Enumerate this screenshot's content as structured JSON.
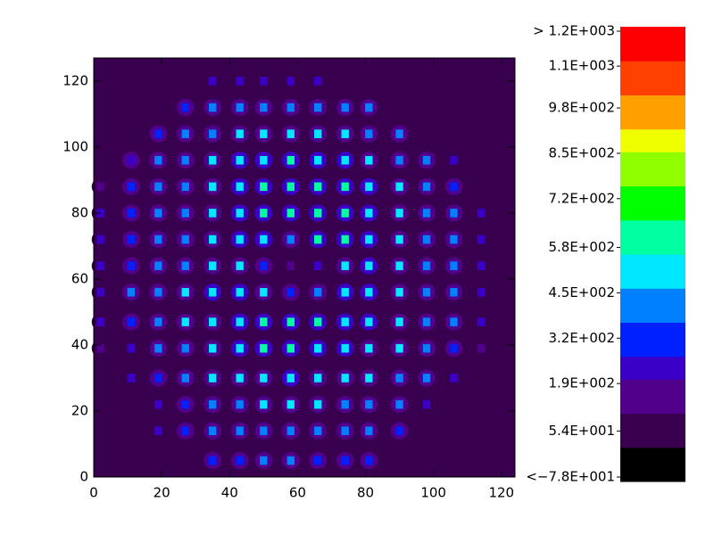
{
  "chart_data": {
    "type": "heatmap",
    "xlim": [
      0,
      124
    ],
    "ylim": [
      0,
      127
    ],
    "xticks": [
      0,
      20,
      40,
      60,
      80,
      100,
      120
    ],
    "yticks": [
      0,
      20,
      40,
      60,
      80,
      100,
      120
    ],
    "x": [
      2,
      11,
      19,
      27,
      35,
      43,
      50,
      58,
      66,
      74,
      81,
      90,
      98,
      106,
      114
    ],
    "y": [
      5,
      14,
      22,
      30,
      39,
      47,
      56,
      64,
      72,
      80,
      88,
      96,
      104,
      112,
      120
    ],
    "background": 20,
    "values": [
      [
        null,
        null,
        null,
        null,
        300,
        320,
        380,
        380,
        350,
        330,
        300,
        null,
        null,
        null,
        null
      ],
      [
        null,
        null,
        200,
        300,
        380,
        420,
        450,
        450,
        420,
        400,
        380,
        300,
        null,
        null,
        null
      ],
      [
        null,
        null,
        250,
        350,
        420,
        460,
        480,
        500,
        480,
        460,
        440,
        400,
        250,
        null,
        null
      ],
      [
        null,
        200,
        330,
        420,
        480,
        500,
        520,
        540,
        520,
        500,
        480,
        440,
        380,
        200,
        null
      ],
      [
        120,
        250,
        380,
        450,
        500,
        560,
        580,
        580,
        560,
        540,
        520,
        480,
        420,
        300,
        150
      ],
      [
        200,
        350,
        420,
        480,
        520,
        560,
        600,
        600,
        580,
        560,
        540,
        500,
        450,
        380,
        200
      ],
      [
        220,
        380,
        440,
        500,
        540,
        560,
        480,
        300,
        420,
        560,
        560,
        520,
        460,
        400,
        240
      ],
      [
        200,
        360,
        420,
        460,
        500,
        520,
        300,
        150,
        200,
        520,
        560,
        520,
        460,
        400,
        250
      ],
      [
        220,
        360,
        420,
        460,
        500,
        560,
        560,
        400,
        600,
        580,
        560,
        520,
        460,
        400,
        220
      ],
      [
        200,
        360,
        420,
        460,
        520,
        560,
        600,
        640,
        620,
        600,
        560,
        520,
        460,
        380,
        200
      ],
      [
        120,
        300,
        400,
        460,
        520,
        560,
        600,
        620,
        600,
        580,
        540,
        500,
        440,
        300,
        null
      ],
      [
        null,
        280,
        380,
        440,
        500,
        540,
        560,
        580,
        560,
        540,
        500,
        460,
        380,
        200,
        null
      ],
      [
        null,
        null,
        300,
        400,
        460,
        500,
        520,
        520,
        500,
        480,
        440,
        380,
        null,
        null,
        null
      ],
      [
        null,
        null,
        null,
        320,
        400,
        440,
        460,
        460,
        440,
        420,
        380,
        null,
        null,
        null,
        null
      ],
      [
        null,
        null,
        null,
        null,
        220,
        250,
        260,
        260,
        240,
        null,
        null,
        null,
        null,
        null,
        null
      ]
    ],
    "zlim": [
      -78,
      1200
    ],
    "zticks": [
      {
        "value": 1200,
        "label": "> 1.2E+003"
      },
      {
        "value": 1100,
        "label": "1.1E+003"
      },
      {
        "value": 980,
        "label": "9.8E+002"
      },
      {
        "value": 850,
        "label": "8.5E+002"
      },
      {
        "value": 720,
        "label": "7.2E+002"
      },
      {
        "value": 580,
        "label": "5.8E+002"
      },
      {
        "value": 450,
        "label": "4.5E+002"
      },
      {
        "value": 320,
        "label": "3.2E+002"
      },
      {
        "value": 190,
        "label": "1.9E+002"
      },
      {
        "value": 54,
        "label": "5.4E+001"
      },
      {
        "value": -78,
        "label": "<−7.8E+001"
      }
    ],
    "colormap": [
      "#000000",
      "#3a0050",
      "#50008a",
      "#3a00c8",
      "#0020ff",
      "#0080ff",
      "#00e8ff",
      "#00ffa0",
      "#00ff00",
      "#90ff00",
      "#f0ff00",
      "#ffa000",
      "#ff4000",
      "#ff0000"
    ]
  }
}
